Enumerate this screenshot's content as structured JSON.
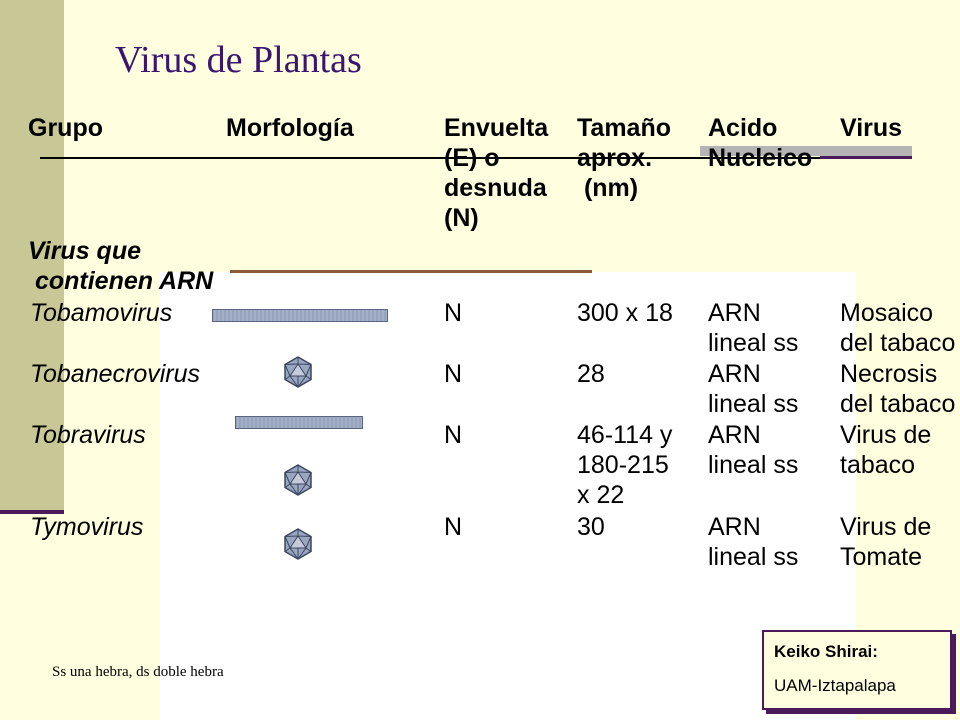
{
  "title": "Virus de Plantas",
  "headers": {
    "grupo": "Grupo",
    "morfologia": "Morfología",
    "envuelta": [
      "Envuelta",
      "(E) o",
      "desnuda",
      "(N)"
    ],
    "tamano": [
      "Tamaño",
      "aprox.",
      " (nm)"
    ],
    "acido": [
      "Acido",
      "Nucleico"
    ],
    "virus": "Virus"
  },
  "section": [
    "Virus que",
    " contienen ARN"
  ],
  "rows": [
    {
      "name": "Tobamovirus",
      "morphology": "rod-icon",
      "envelope": "N",
      "size": [
        "300 x 18"
      ],
      "acid": [
        "ARN",
        "lineal ss"
      ],
      "virus": [
        "Mosaico",
        "del tabaco"
      ]
    },
    {
      "name": "Tobanecrovirus",
      "morphology": "icosahedron-icon",
      "envelope": "N",
      "size": [
        "28"
      ],
      "acid": [
        "ARN",
        "lineal ss"
      ],
      "virus": [
        "Necrosis",
        "del tabaco"
      ]
    },
    {
      "name": "Tobravirus",
      "morphology": "rod-and-icosahedron-icon",
      "envelope": "N",
      "size": [
        "46-114 y",
        "180-215",
        "x 22"
      ],
      "acid": [
        "ARN",
        "lineal ss"
      ],
      "virus": [
        "Virus de",
        "tabaco"
      ]
    },
    {
      "name": "Tymovirus",
      "morphology": "icosahedron-icon",
      "envelope": "N",
      "size": [
        "30"
      ],
      "acid": [
        "ARN",
        "lineal ss"
      ],
      "virus": [
        "Virus de",
        "Tomate"
      ]
    }
  ],
  "footnote": "Ss una hebra, ds doble hebra",
  "credit": {
    "name": "Keiko Shirai:",
    "institution": "UAM-Iztapalapa"
  },
  "colors": {
    "background": "#ffffe0",
    "sidebar": "#c8c896",
    "title": "#3a1670",
    "accent": "#4b1a5a"
  }
}
